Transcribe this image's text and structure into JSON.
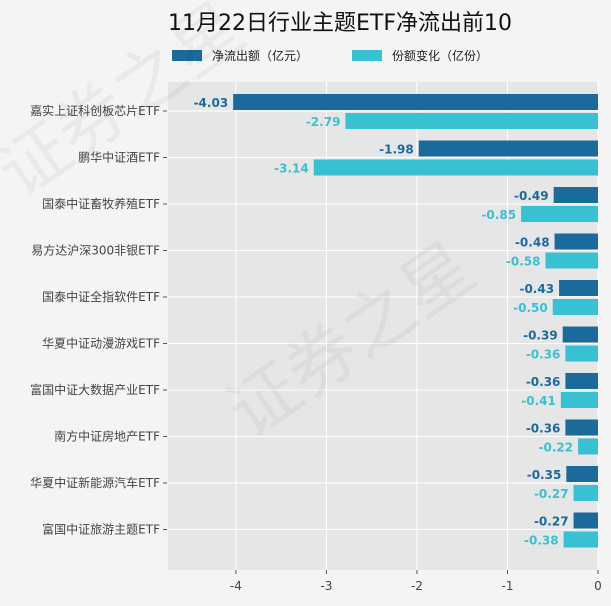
{
  "chart_data": {
    "type": "bar",
    "orientation": "horizontal",
    "title": "11月22日行业主题ETF净流出前10",
    "categories": [
      "嘉实上证科创板芯片ETF",
      "鹏华中证酒ETF",
      "国泰中证畜牧养殖ETF",
      "易方达沪深300非银ETF",
      "国泰中证全指软件ETF",
      "华夏中证动漫游戏ETF",
      "富国中证大数据产业ETF",
      "南方中证房地产ETF",
      "华夏中证新能源汽车ETF",
      "富国中证旅游主题ETF"
    ],
    "series": [
      {
        "name": "净流出额（亿元）",
        "color": "#1a6b9c",
        "values": [
          -4.03,
          -1.98,
          -0.49,
          -0.48,
          -0.43,
          -0.39,
          -0.36,
          -0.36,
          -0.35,
          -0.27
        ]
      },
      {
        "name": "份额变化（亿份）",
        "color": "#38c1d3",
        "values": [
          -2.79,
          -3.14,
          -0.85,
          -0.58,
          -0.5,
          -0.36,
          -0.41,
          -0.22,
          -0.27,
          -0.38
        ]
      }
    ],
    "xticks": [
      -4,
      -3,
      -2,
      -1,
      0
    ],
    "xlim": [
      -4.75,
      0
    ],
    "grid": true,
    "legend": "top"
  },
  "watermark": "证券之星"
}
